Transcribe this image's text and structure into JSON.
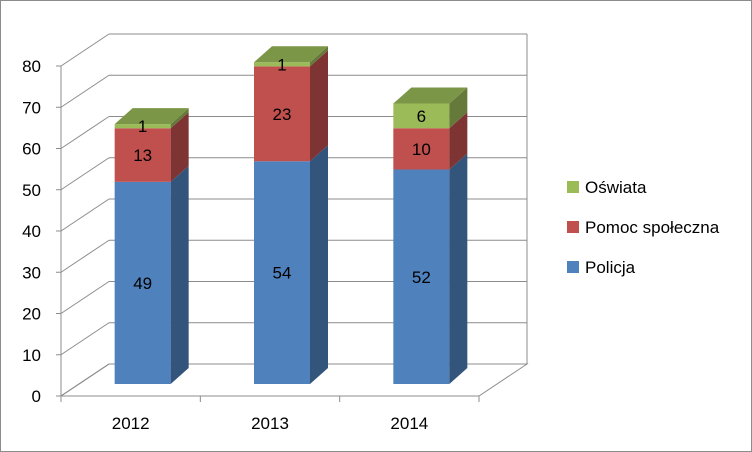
{
  "chart_data": {
    "type": "bar",
    "stacked": true,
    "three_d": true,
    "categories": [
      "2012",
      "2013",
      "2014"
    ],
    "series": [
      {
        "name": "Policja",
        "values": [
          49,
          54,
          52
        ],
        "color": "#4F81BD"
      },
      {
        "name": "Pomoc społeczna",
        "values": [
          13,
          23,
          10
        ],
        "color": "#C0504D"
      },
      {
        "name": "Oświata",
        "values": [
          1,
          1,
          6
        ],
        "color": "#9BBB59"
      }
    ],
    "yticks": [
      "0",
      "10",
      "20",
      "30",
      "40",
      "50",
      "60",
      "70",
      "80"
    ],
    "ylim": [
      0,
      80
    ],
    "grid": true,
    "legend_position": "right",
    "title": "",
    "xlabel": "",
    "ylabel": ""
  }
}
